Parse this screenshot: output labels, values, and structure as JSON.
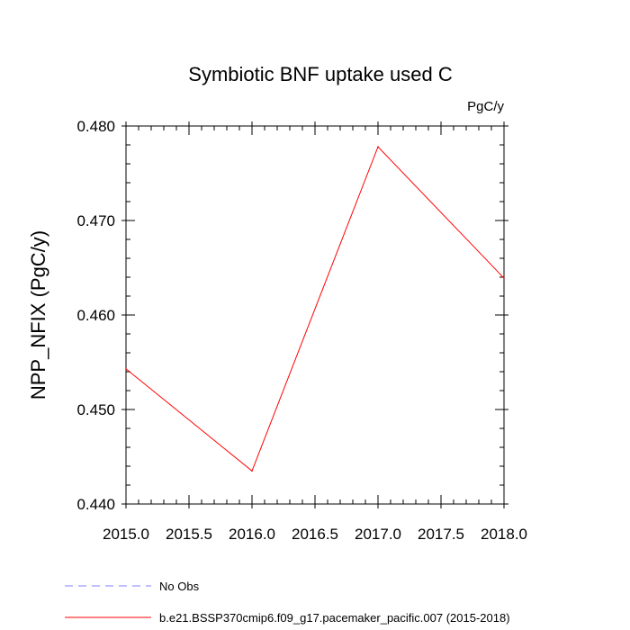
{
  "chart_data": {
    "type": "line",
    "title": "Symbiotic BNF uptake used C",
    "units_label": "PgC/y",
    "xlabel": "",
    "ylabel": "NPP_NFIX  (PgC/y)",
    "xlim": [
      2015.0,
      2018.0
    ],
    "ylim": [
      0.44,
      0.48
    ],
    "x_ticks": [
      "2015.0",
      "2015.5",
      "2016.0",
      "2016.5",
      "2017.0",
      "2017.5",
      "2018.0"
    ],
    "y_ticks": [
      "0.440",
      "0.450",
      "0.460",
      "0.470",
      "0.480"
    ],
    "grid": false,
    "legend_position": "bottom",
    "series": [
      {
        "name": "No Obs",
        "color": "#8080ff",
        "dash": "dashed",
        "x": [],
        "y": []
      },
      {
        "name": "b.e21.BSSP370cmip6.f09_g17.pacemaker_pacific.007 (2015-2018)",
        "color": "#ff0000",
        "dash": "solid",
        "x": [
          2015,
          2016,
          2017,
          2018
        ],
        "y": [
          0.4543,
          0.4435,
          0.4778,
          0.4639
        ]
      }
    ]
  }
}
